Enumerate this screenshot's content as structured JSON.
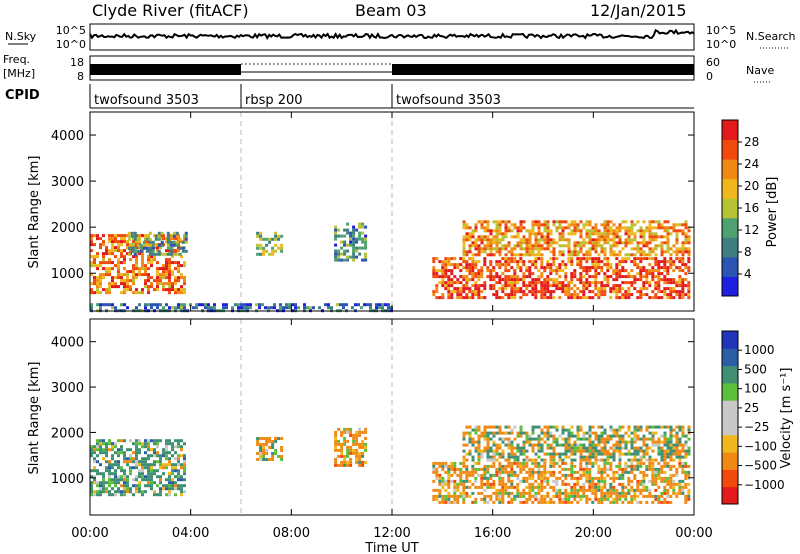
{
  "header": {
    "station": "Clyde River (fitACF)",
    "beam": "Beam 03",
    "date": "12/Jan/2015"
  },
  "noise_panel": {
    "left_label": "N.Sky",
    "left_ticks": [
      "10^5",
      "10^0"
    ],
    "right_label": "N.Search",
    "right_ticks": [
      "10^5",
      "10^0"
    ]
  },
  "freq_panel": {
    "left_label_1": "Freq.",
    "left_label_2": "[MHz]",
    "left_ticks": [
      "18",
      "8"
    ],
    "right_label": "Nave",
    "right_ticks": [
      "60",
      "0"
    ]
  },
  "cpid": {
    "label": "CPID",
    "segments": [
      {
        "name": "twofsound 3503",
        "start_h": 0,
        "end_h": 6
      },
      {
        "name": "rbsp 200",
        "start_h": 6,
        "end_h": 12
      },
      {
        "name": "twofsound 3503",
        "start_h": 12,
        "end_h": 24
      }
    ]
  },
  "x_axis": {
    "label": "Time UT",
    "ticks": [
      "00:00",
      "04:00",
      "08:00",
      "12:00",
      "16:00",
      "20:00",
      "00:00"
    ]
  },
  "colors": {
    "power": [
      "#1f1fe0",
      "#2b54b4",
      "#3f7f82",
      "#4fa16f",
      "#b7c234",
      "#f0b81c",
      "#f08a14",
      "#f24a0c",
      "#e31a1c"
    ],
    "velocity": [
      "#e41a1c",
      "#f24a0c",
      "#f08a14",
      "#f0b81c",
      "#c8c8c8",
      "#c8c8c8",
      "#5bbf3a",
      "#3f8f73",
      "#2c5ea8",
      "#2035b8"
    ]
  },
  "chart_data": [
    {
      "type": "heatmap",
      "title": "Power",
      "xlabel": "Time UT",
      "ylabel": "Slant Range [km]",
      "xlim_hours": [
        0,
        24
      ],
      "ylim_km": [
        180,
        4500
      ],
      "y_ticks": [
        "1000",
        "2000",
        "3000",
        "4000"
      ],
      "colorbar": {
        "label": "Power [dB]",
        "ticks": [
          "4",
          "8",
          "12",
          "16",
          "20",
          "24",
          "28"
        ],
        "range": [
          0,
          32
        ]
      },
      "echo_regions": [
        {
          "t0": 0.0,
          "t1": 3.8,
          "r0": 600,
          "r1": 1850,
          "v": 24
        },
        {
          "t0": 1.5,
          "t1": 3.8,
          "r0": 1400,
          "r1": 1900,
          "v": 12
        },
        {
          "t0": 6.6,
          "t1": 7.6,
          "r0": 1400,
          "r1": 1900,
          "v": 14
        },
        {
          "t0": 9.7,
          "t1": 10.9,
          "r0": 1300,
          "r1": 2100,
          "v": 10
        },
        {
          "t0": 13.6,
          "t1": 23.8,
          "r0": 450,
          "r1": 1350,
          "v": 27
        },
        {
          "t0": 14.8,
          "t1": 23.8,
          "r0": 1400,
          "r1": 2150,
          "v": 22
        },
        {
          "t0": 0.0,
          "t1": 12.0,
          "r0": 200,
          "r1": 350,
          "v": 8
        }
      ]
    },
    {
      "type": "heatmap",
      "title": "Velocity",
      "xlabel": "Time UT",
      "ylabel": "Slant Range [km]",
      "xlim_hours": [
        0,
        24
      ],
      "ylim_km": [
        180,
        4500
      ],
      "y_ticks": [
        "1000",
        "2000",
        "3000",
        "4000"
      ],
      "colorbar": {
        "label": "Velocity [m s⁻¹]",
        "ticks": [
          "1000",
          "500",
          "100",
          "25",
          "−25",
          "−100",
          "−500",
          "−1000"
        ]
      },
      "echo_regions": [
        {
          "t0": 0.0,
          "t1": 3.8,
          "r0": 600,
          "r1": 1850,
          "v": 200
        },
        {
          "t0": 6.6,
          "t1": 7.6,
          "r0": 1400,
          "r1": 1900,
          "v": -150
        },
        {
          "t0": 9.7,
          "t1": 10.9,
          "r0": 1300,
          "r1": 2100,
          "v": -200
        },
        {
          "t0": 13.6,
          "t1": 23.8,
          "r0": 450,
          "r1": 1350,
          "v": -200
        },
        {
          "t0": 14.8,
          "t1": 23.8,
          "r0": 1400,
          "r1": 2150,
          "v": 0
        }
      ]
    }
  ]
}
